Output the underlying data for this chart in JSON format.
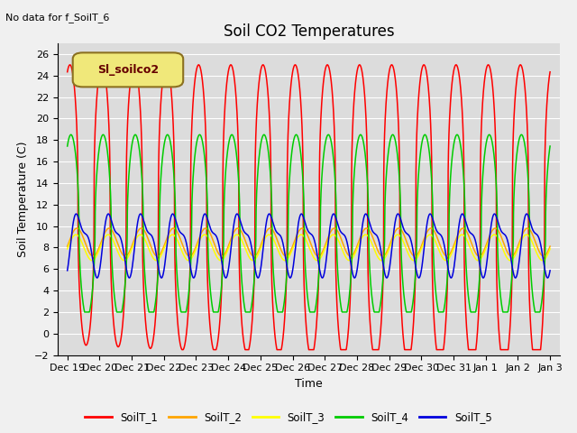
{
  "title": "Soil CO2 Temperatures",
  "no_data_text": "No data for f_SoilT_6",
  "legend_box_text": "Sl_soilco2",
  "ylabel": "Soil Temperature (C)",
  "xlabel": "Time",
  "ylim": [
    -2,
    27
  ],
  "yticks": [
    -2,
    0,
    2,
    4,
    6,
    8,
    10,
    12,
    14,
    16,
    18,
    20,
    22,
    24,
    26
  ],
  "bg_color": "#dcdcdc",
  "fig_color": "#f0f0f0",
  "line_colors": {
    "SoilT_1": "#ff0000",
    "SoilT_2": "#ffa500",
    "SoilT_3": "#ffff00",
    "SoilT_4": "#00cc00",
    "SoilT_5": "#0000dd"
  },
  "legend_entries": [
    "SoilT_1",
    "SoilT_2",
    "SoilT_3",
    "SoilT_4",
    "SoilT_5"
  ],
  "x_tick_labels": [
    "Dec 19",
    "Dec 20",
    "Dec 21",
    "Dec 22",
    "Dec 23",
    "Dec 24",
    "Dec 25",
    "Dec 26",
    "Dec 27",
    "Dec 28",
    "Dec 29",
    "Dec 30",
    "Dec 31",
    "Jan 1",
    "Jan 2",
    "Jan 3"
  ]
}
